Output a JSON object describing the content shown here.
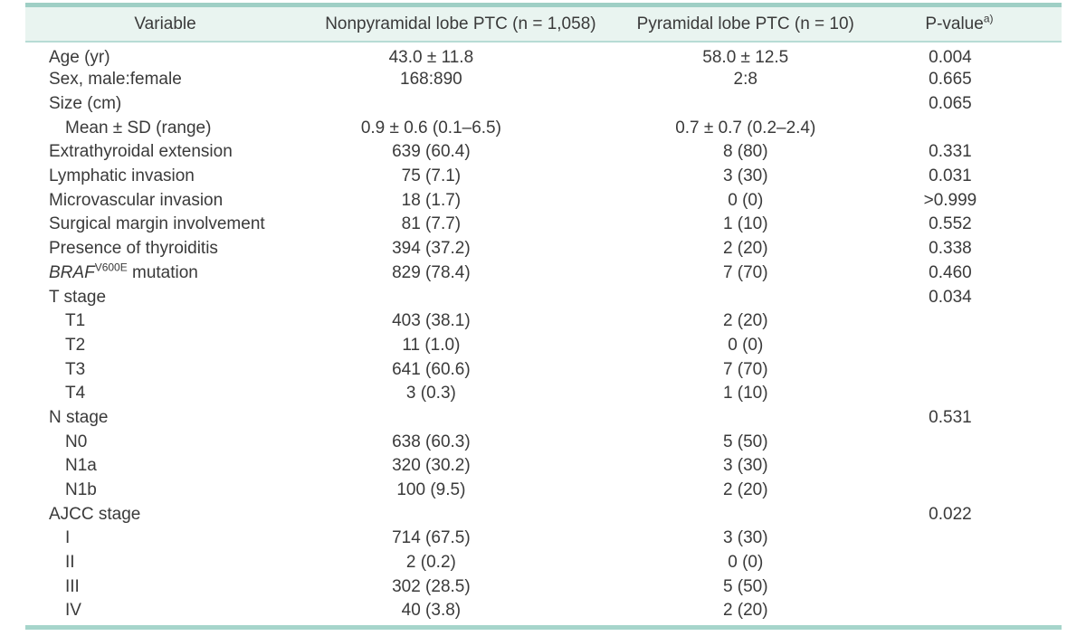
{
  "table": {
    "accent_colors": {
      "top_border": "#9fcfc5",
      "header_bg": "#e9f4f0",
      "header_underline": "#b7dcd5",
      "bottom_border": "#a6d5cb"
    },
    "columns": [
      {
        "label": "Variable"
      },
      {
        "label": "Nonpyramidal lobe PTC (n = 1,058)"
      },
      {
        "label": "Pyramidal lobe PTC (n = 10)"
      },
      {
        "label": "P-value",
        "superscript": "a)"
      }
    ],
    "rows": [
      {
        "variable": "Age (yr)",
        "indent": false,
        "nonpyramidal": "43.0 ± 11.8",
        "pyramidal": "58.0 ± 12.5",
        "p_value": "0.004"
      },
      {
        "variable": "Sex, male:female",
        "indent": false,
        "nonpyramidal": "168:890",
        "pyramidal": "2:8",
        "p_value": "0.665"
      },
      {
        "variable": "Size (cm)",
        "indent": false,
        "nonpyramidal": "",
        "pyramidal": "",
        "p_value": "0.065"
      },
      {
        "variable": "Mean ± SD (range)",
        "indent": true,
        "nonpyramidal": "0.9 ± 0.6 (0.1–6.5)",
        "pyramidal": "0.7 ± 0.7 (0.2–2.4)",
        "p_value": ""
      },
      {
        "variable": "Extrathyroidal extension",
        "indent": false,
        "nonpyramidal": "639 (60.4)",
        "pyramidal": "8 (80)",
        "p_value": "0.331"
      },
      {
        "variable": "Lymphatic invasion",
        "indent": false,
        "nonpyramidal": "75 (7.1)",
        "pyramidal": "3 (30)",
        "p_value": "0.031"
      },
      {
        "variable": "Microvascular invasion",
        "indent": false,
        "nonpyramidal": "18 (1.7)",
        "pyramidal": "0 (0)",
        "p_value": ">0.999"
      },
      {
        "variable": "Surgical margin involvement",
        "indent": false,
        "nonpyramidal": "81 (7.7)",
        "pyramidal": "1 (10)",
        "p_value": "0.552"
      },
      {
        "variable": "Presence of thyroiditis",
        "indent": false,
        "nonpyramidal": "394 (37.2)",
        "pyramidal": "2 (20)",
        "p_value": "0.338"
      },
      {
        "variable_rich": [
          {
            "text": "BRAF",
            "italic": true
          },
          {
            "text": "V600E",
            "sup": true
          },
          {
            "text": " mutation"
          }
        ],
        "indent": false,
        "nonpyramidal": "829 (78.4)",
        "pyramidal": "7 (70)",
        "p_value": "0.460"
      },
      {
        "variable": "T stage",
        "indent": false,
        "nonpyramidal": "",
        "pyramidal": "",
        "p_value": "0.034"
      },
      {
        "variable": "T1",
        "indent": true,
        "nonpyramidal": "403 (38.1)",
        "pyramidal": "2 (20)",
        "p_value": ""
      },
      {
        "variable": "T2",
        "indent": true,
        "nonpyramidal": "11 (1.0)",
        "pyramidal": "0 (0)",
        "p_value": ""
      },
      {
        "variable": "T3",
        "indent": true,
        "nonpyramidal": "641 (60.6)",
        "pyramidal": "7 (70)",
        "p_value": ""
      },
      {
        "variable": "T4",
        "indent": true,
        "nonpyramidal": "3 (0.3)",
        "pyramidal": "1 (10)",
        "p_value": ""
      },
      {
        "variable": "N stage",
        "indent": false,
        "nonpyramidal": "",
        "pyramidal": "",
        "p_value": "0.531"
      },
      {
        "variable": "N0",
        "indent": true,
        "nonpyramidal": "638 (60.3)",
        "pyramidal": "5 (50)",
        "p_value": ""
      },
      {
        "variable": "N1a",
        "indent": true,
        "nonpyramidal": "320 (30.2)",
        "pyramidal": "3 (30)",
        "p_value": ""
      },
      {
        "variable": "N1b",
        "indent": true,
        "nonpyramidal": "100 (9.5)",
        "pyramidal": "2 (20)",
        "p_value": ""
      },
      {
        "variable": "AJCC stage",
        "indent": false,
        "nonpyramidal": "",
        "pyramidal": "",
        "p_value": "0.022"
      },
      {
        "variable": "I",
        "indent": true,
        "nonpyramidal": "714 (67.5)",
        "pyramidal": "3 (30)",
        "p_value": ""
      },
      {
        "variable": "II",
        "indent": true,
        "nonpyramidal": "2 (0.2)",
        "pyramidal": "0 (0)",
        "p_value": ""
      },
      {
        "variable": "III",
        "indent": true,
        "nonpyramidal": "302 (28.5)",
        "pyramidal": "5 (50)",
        "p_value": ""
      },
      {
        "variable": "IV",
        "indent": true,
        "nonpyramidal": "40 (3.8)",
        "pyramidal": "2 (20)",
        "p_value": ""
      }
    ]
  }
}
